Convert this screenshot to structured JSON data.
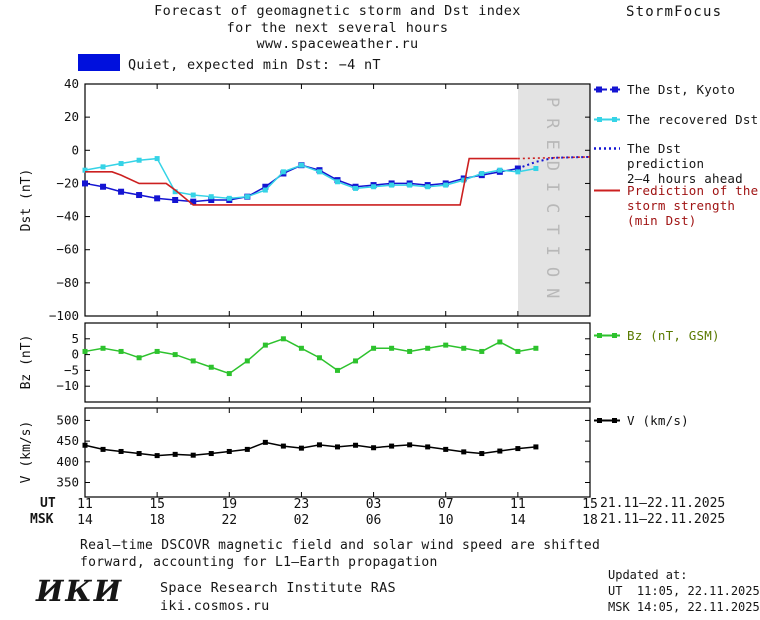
{
  "header": {
    "title_line1": "Forecast of geomagnetic storm and Dst index",
    "title_line2": "for the next several hours",
    "title_line3": "www.spaceweather.ru",
    "brand": "StormFocus"
  },
  "status": {
    "label": "Quiet, expected min Dst: −4 nT",
    "color": "#0010dd"
  },
  "prediction": {
    "label": "PREDICTION",
    "band_color": "#e3e3e3",
    "text_color": "#b8b8b8"
  },
  "legend": {
    "dst_kyoto": "The Dst, Kyoto",
    "recovered": "The recovered Dst",
    "dst_prediction_line1": "The Dst prediction",
    "dst_prediction_line2": "2—4 hours ahead",
    "storm_line1": "Prediction of the",
    "storm_line2": "storm strength",
    "storm_line3": "(min Dst)",
    "storm_text_color": "#a01414",
    "bz": "Bz (nT, GSM)",
    "bz_text_color": "#5a7a00",
    "v": "V (km/s)",
    "v_text_color": "#111111"
  },
  "axis": {
    "ut_label": "UT",
    "msk_label": "MSK",
    "ut_ticks": [
      "11",
      "15",
      "19",
      "23",
      "03",
      "07",
      "11",
      "15"
    ],
    "msk_ticks": [
      "14",
      "18",
      "22",
      "02",
      "06",
      "10",
      "14",
      "18"
    ],
    "date_range_ut": "21.11—22.11.2025",
    "date_range_msk": "21.11—22.11.2025"
  },
  "footer": {
    "line1": "Real—time DSCOVR magnetic field and solar wind speed are shifted",
    "line2": "forward, accounting for L1—Earth propagation"
  },
  "updated": {
    "heading": "Updated at:",
    "ut": "UT  11:05, 22.11.2025",
    "msk": "MSK 14:05, 22.11.2025"
  },
  "logo": {
    "abbr": "ИКИ",
    "institute": "Space Research Institute RAS",
    "site": "iki.cosmos.ru"
  },
  "chart_data": [
    {
      "type": "line",
      "panel": "Dst",
      "ylabel": "Dst (nT)",
      "ylim": [
        -100,
        40
      ],
      "yticks": [
        40,
        20,
        0,
        -20,
        -40,
        -60,
        -80,
        -100
      ],
      "xlim_hours": [
        0,
        28
      ],
      "x_description": "hours since 11:00 UT 21.11.2025, major ticks every 4 h",
      "prediction_window_hours": [
        24,
        28
      ],
      "series": [
        {
          "key": "dst-kyoto",
          "name": "The Dst, Kyoto",
          "color": "#1414d2",
          "marker": 6,
          "x": [
            0,
            1,
            2,
            3,
            4,
            5,
            6,
            7,
            8,
            9,
            10,
            11,
            12,
            13,
            14,
            15,
            16,
            17,
            18,
            19,
            20,
            21,
            22,
            23,
            24
          ],
          "values": [
            -20,
            -22,
            -25,
            -27,
            -29,
            -30,
            -31,
            -30,
            -30,
            -28,
            -22,
            -14,
            -9,
            -12,
            -18,
            -22,
            -21,
            -20,
            -20,
            -21,
            -20,
            -17,
            -15,
            -13,
            -11
          ]
        },
        {
          "key": "dst-recovered",
          "name": "The recovered Dst",
          "color": "#35d3e6",
          "marker": 5,
          "x": [
            0,
            1,
            2,
            3,
            4,
            5,
            6,
            7,
            8,
            9,
            10,
            11,
            12,
            13,
            14,
            15,
            16,
            17,
            18,
            19,
            20,
            21,
            22,
            23,
            24,
            25
          ],
          "values": [
            -12,
            -10,
            -8,
            -6,
            -5,
            -25,
            -27,
            -28,
            -29,
            -28,
            -24,
            -13,
            -9,
            -13,
            -19,
            -23,
            -22,
            -21,
            -21,
            -22,
            -21,
            -18,
            -14,
            -12,
            -13,
            -11
          ]
        },
        {
          "key": "dst-prediction",
          "name": "The Dst prediction 2—4 hours ahead",
          "color": "#1414d2",
          "dash": "2 3",
          "width": 2,
          "x": [
            24,
            25,
            26,
            28
          ],
          "values": [
            -11,
            -7,
            -4.5,
            -4
          ]
        },
        {
          "key": "storm-prediction",
          "name": "Prediction of the storm strength (min Dst)",
          "color": "#cc2020",
          "width": 1.6,
          "x": [
            0,
            1.5,
            2,
            3,
            4.5,
            5,
            6,
            20.8,
            21.3,
            24
          ],
          "values": [
            -13,
            -13,
            -15,
            -20,
            -20,
            -24,
            -33,
            -33,
            -5,
            -5
          ]
        },
        {
          "key": "storm-prediction-forecast",
          "name": "min Dst in prediction window",
          "color": "#cc2020",
          "dash": "2 3",
          "width": 1.6,
          "x": [
            24,
            28
          ],
          "values": [
            -5,
            -4
          ]
        }
      ]
    },
    {
      "type": "line",
      "panel": "Bz",
      "ylabel": "Bz (nT)",
      "ylim": [
        -15,
        10
      ],
      "yticks": [
        5,
        0,
        -5,
        -10
      ],
      "series": [
        {
          "key": "bz",
          "name": "Bz (nT, GSM)",
          "color": "#2dc22d",
          "marker": 5,
          "x": [
            0,
            1,
            2,
            3,
            4,
            5,
            6,
            7,
            8,
            9,
            10,
            11,
            12,
            13,
            14,
            15,
            16,
            17,
            18,
            19,
            20,
            21,
            22,
            23,
            24,
            25
          ],
          "values": [
            1,
            2,
            1,
            -1,
            1,
            0,
            -2,
            -4,
            -6,
            -2,
            3,
            5,
            2,
            -1,
            -5,
            -2,
            2,
            2,
            1,
            2,
            3,
            2,
            1,
            4,
            1,
            2
          ]
        }
      ]
    },
    {
      "type": "line",
      "panel": "V",
      "ylabel": "V (km/s)",
      "ylim": [
        315,
        530
      ],
      "yticks": [
        500,
        450,
        400,
        350
      ],
      "series": [
        {
          "key": "v",
          "name": "V (km/s)",
          "color": "#000000",
          "marker": 5,
          "x": [
            0,
            1,
            2,
            3,
            4,
            5,
            6,
            7,
            8,
            9,
            10,
            11,
            12,
            13,
            14,
            15,
            16,
            17,
            18,
            19,
            20,
            21,
            22,
            23,
            24,
            25
          ],
          "values": [
            440,
            430,
            425,
            420,
            415,
            418,
            416,
            420,
            425,
            430,
            447,
            438,
            433,
            441,
            436,
            440,
            434,
            438,
            441,
            436,
            430,
            424,
            420,
            426,
            432,
            436
          ]
        }
      ]
    }
  ]
}
